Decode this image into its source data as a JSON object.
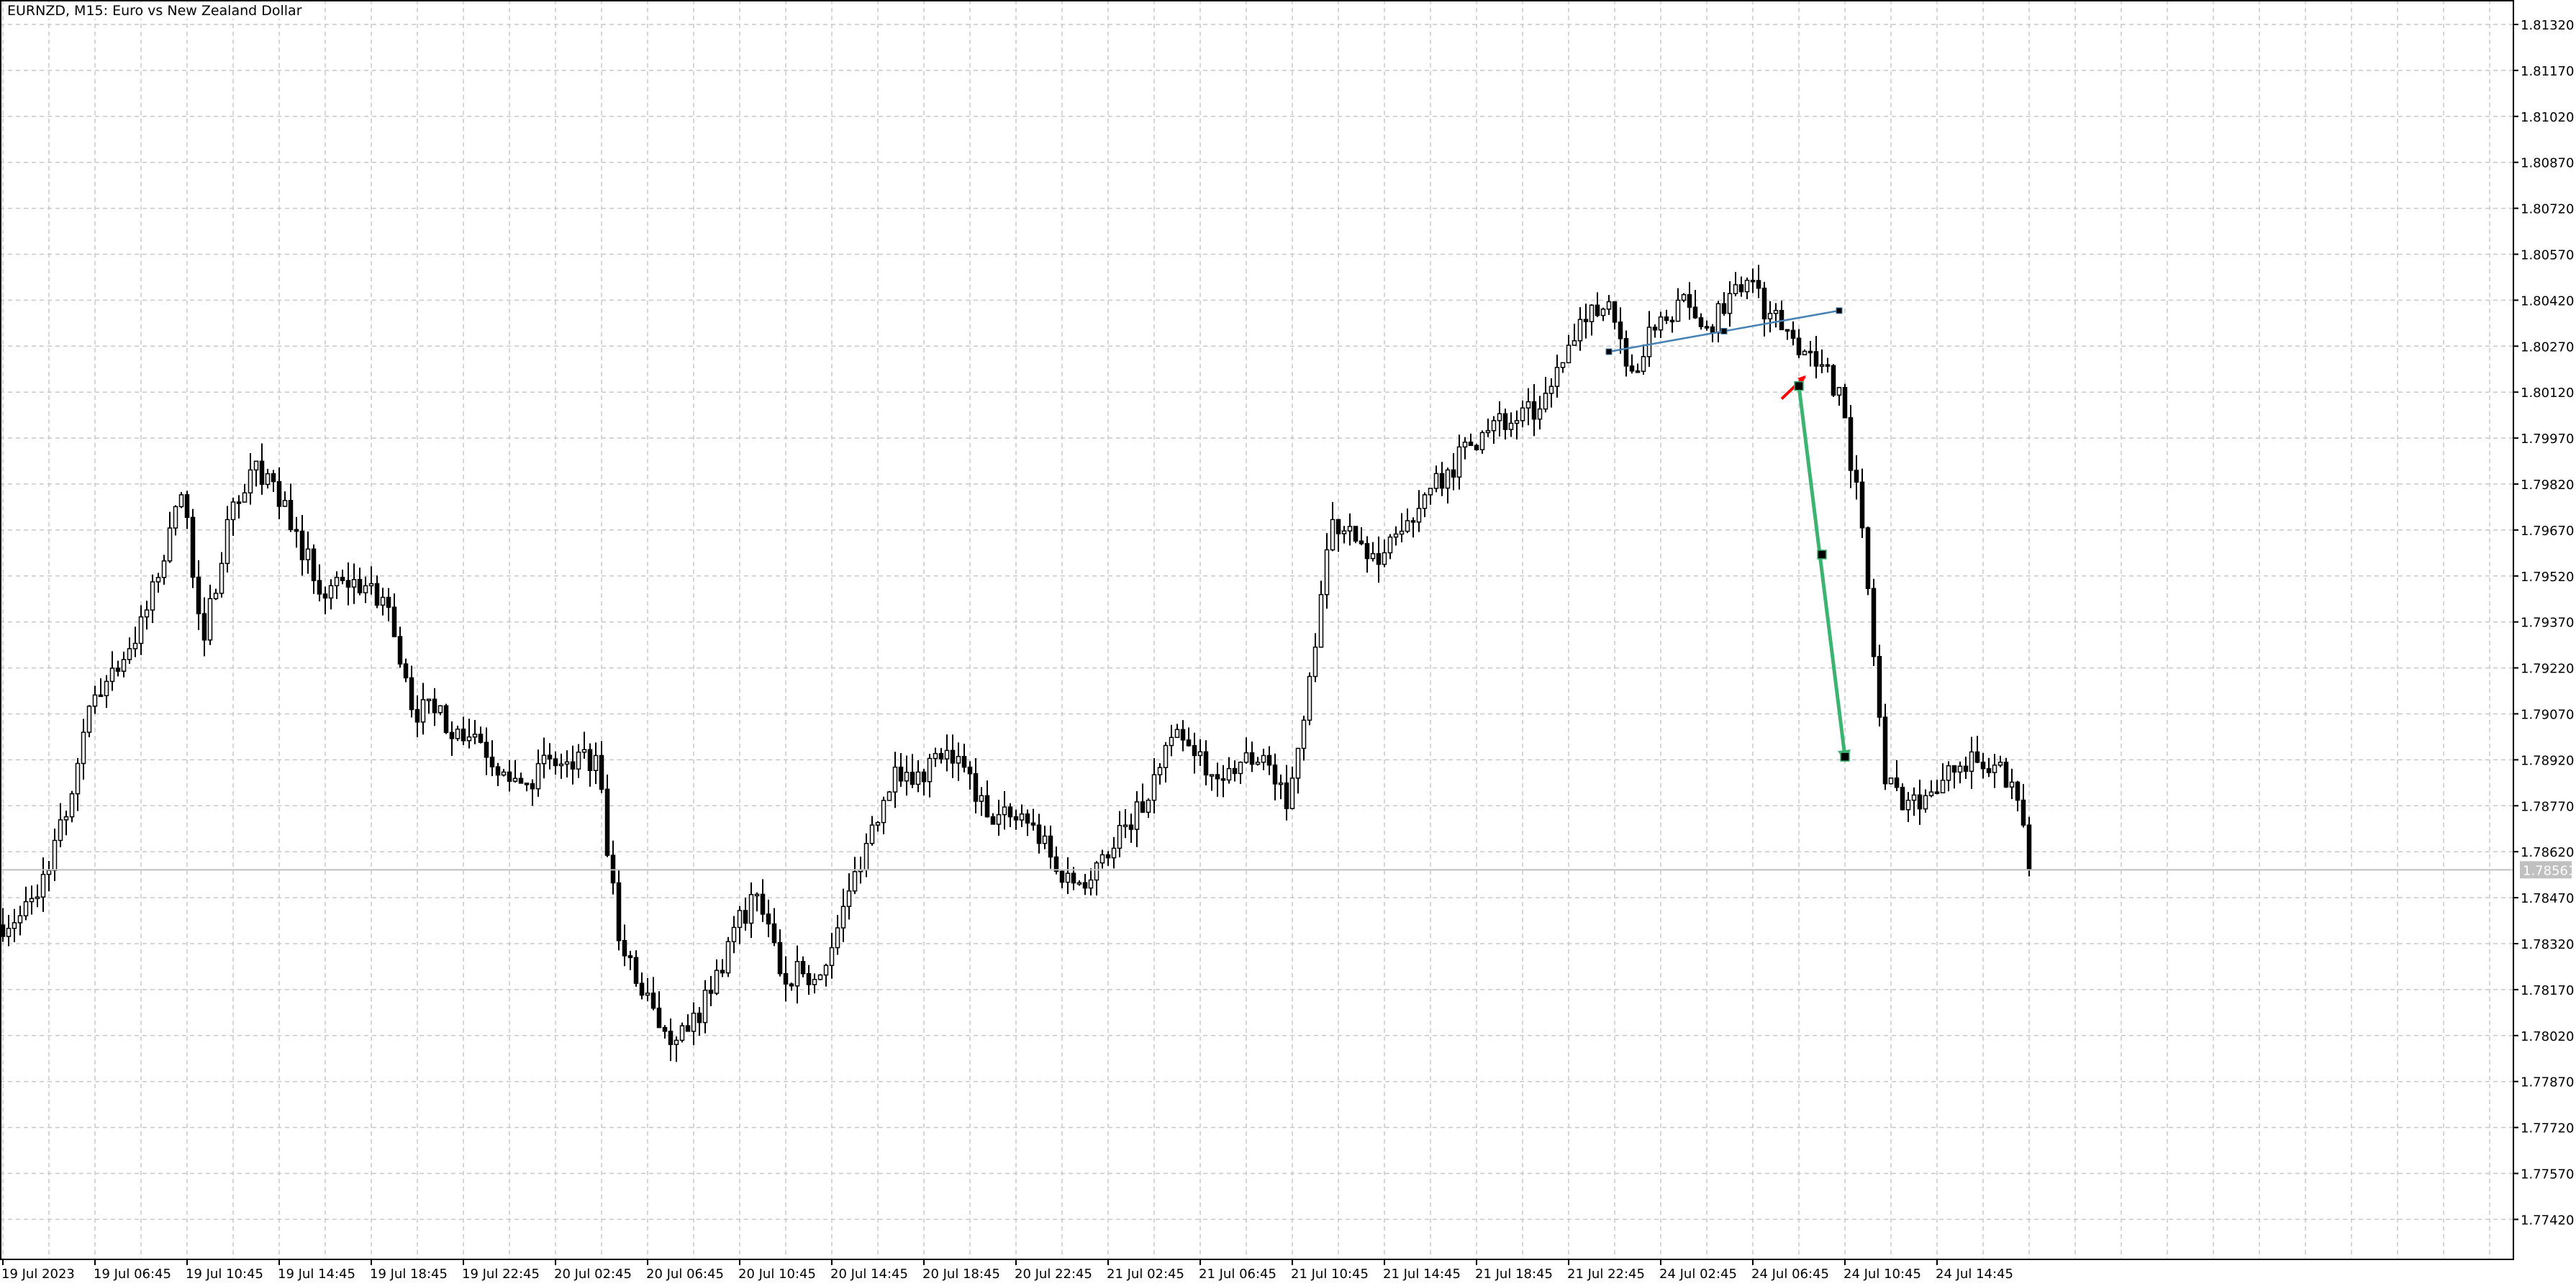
{
  "title": "EURNZD, M15:  Euro vs New Zealand Dollar",
  "colors": {
    "background": "#ffffff",
    "grid": "#c8c8c8",
    "bull_fill": "#ffffff",
    "bear_fill": "#000000",
    "candle_outline": "#000000",
    "trendline": "#4682b4",
    "red_arrow": "#ff0000",
    "green_arrow": "#3cb371",
    "price_label_bg": "#c0c0c0",
    "price_label_text": "#ffffff"
  },
  "chart_data": {
    "type": "candlestick",
    "symbol": "EURNZD",
    "timeframe": "M15",
    "grid": true,
    "ylim": [
      1.7735,
      1.8137
    ],
    "y_ticks": [
      "1.81320",
      "1.81170",
      "1.81020",
      "1.80870",
      "1.80720",
      "1.80570",
      "1.80420",
      "1.80270",
      "1.80120",
      "1.79970",
      "1.79820",
      "1.79670",
      "1.79520",
      "1.79370",
      "1.79220",
      "1.79070",
      "1.78920",
      "1.78770",
      "1.78620",
      "1.78470",
      "1.78320",
      "1.78170",
      "1.78020",
      "1.77870",
      "1.77720",
      "1.77570",
      "1.77420"
    ],
    "x_ticks": [
      "19 Jul 2023",
      "19 Jul 06:45",
      "19 Jul 10:45",
      "19 Jul 14:45",
      "19 Jul 18:45",
      "19 Jul 22:45",
      "20 Jul 02:45",
      "20 Jul 06:45",
      "20 Jul 10:45",
      "20 Jul 14:45",
      "20 Jul 18:45",
      "20 Jul 22:45",
      "21 Jul 02:45",
      "21 Jul 06:45",
      "21 Jul 10:45",
      "21 Jul 14:45",
      "21 Jul 18:45",
      "21 Jul 22:45",
      "24 Jul 02:45",
      "24 Jul 06:45",
      "24 Jul 10:45",
      "24 Jul 14:45"
    ],
    "bars_per_x_tick": 16,
    "hourly_closes": [
      1.78411,
      1.78546,
      1.78734,
      1.79095,
      1.79219,
      1.793,
      1.79515,
      1.79785,
      1.79311,
      1.79704,
      1.79866,
      1.79828,
      1.79666,
      1.79461,
      1.79505,
      1.79488,
      1.79418,
      1.79084,
      1.79074,
      1.7902,
      1.78977,
      1.7888,
      1.78842,
      1.78923,
      1.7889,
      1.78934,
      1.7833,
      1.78152,
      1.78034,
      1.78034,
      1.78158,
      1.78373,
      1.78481,
      1.78222,
      1.78222,
      1.78249,
      1.78492,
      1.78707,
      1.78896,
      1.7888,
      1.78923,
      1.78896,
      1.78734,
      1.78734,
      1.78707,
      1.78556,
      1.78519,
      1.7861,
      1.78707,
      1.78788,
      1.78993,
      1.78934,
      1.78858,
      1.78912,
      1.78934,
      1.78761,
      1.79192,
      1.79704,
      1.79634,
      1.79558,
      1.79666,
      1.79785,
      1.79866,
      1.79946,
      1.80027,
      1.80027,
      1.80065,
      1.80216,
      1.8035,
      1.80415,
      1.80189,
      1.80323,
      1.8042,
      1.80334,
      1.80377,
      1.80485,
      1.80377,
      1.80296,
      1.80205,
      1.80135,
      1.79677,
      1.78842,
      1.78788,
      1.78815,
      1.7888,
      1.78912,
      1.78912,
      1.78707,
      1.78561
    ],
    "current_price": "1.78561",
    "drawings": {
      "trendline": {
        "from_bar": 279,
        "from_price": 1.80252,
        "mid_bar": 299,
        "mid_price": 1.80319,
        "to_bar": 319,
        "to_price": 1.80386
      },
      "red_arrow": {
        "from_bar": 309,
        "from_price": 1.80098,
        "to_bar": 313,
        "to_price": 1.8017
      },
      "green_arrow": {
        "from_bar": 312,
        "from_price": 1.8014,
        "mid_bar": 316,
        "mid_price": 1.7959,
        "to_bar": 320,
        "to_price": 1.7893
      }
    }
  }
}
